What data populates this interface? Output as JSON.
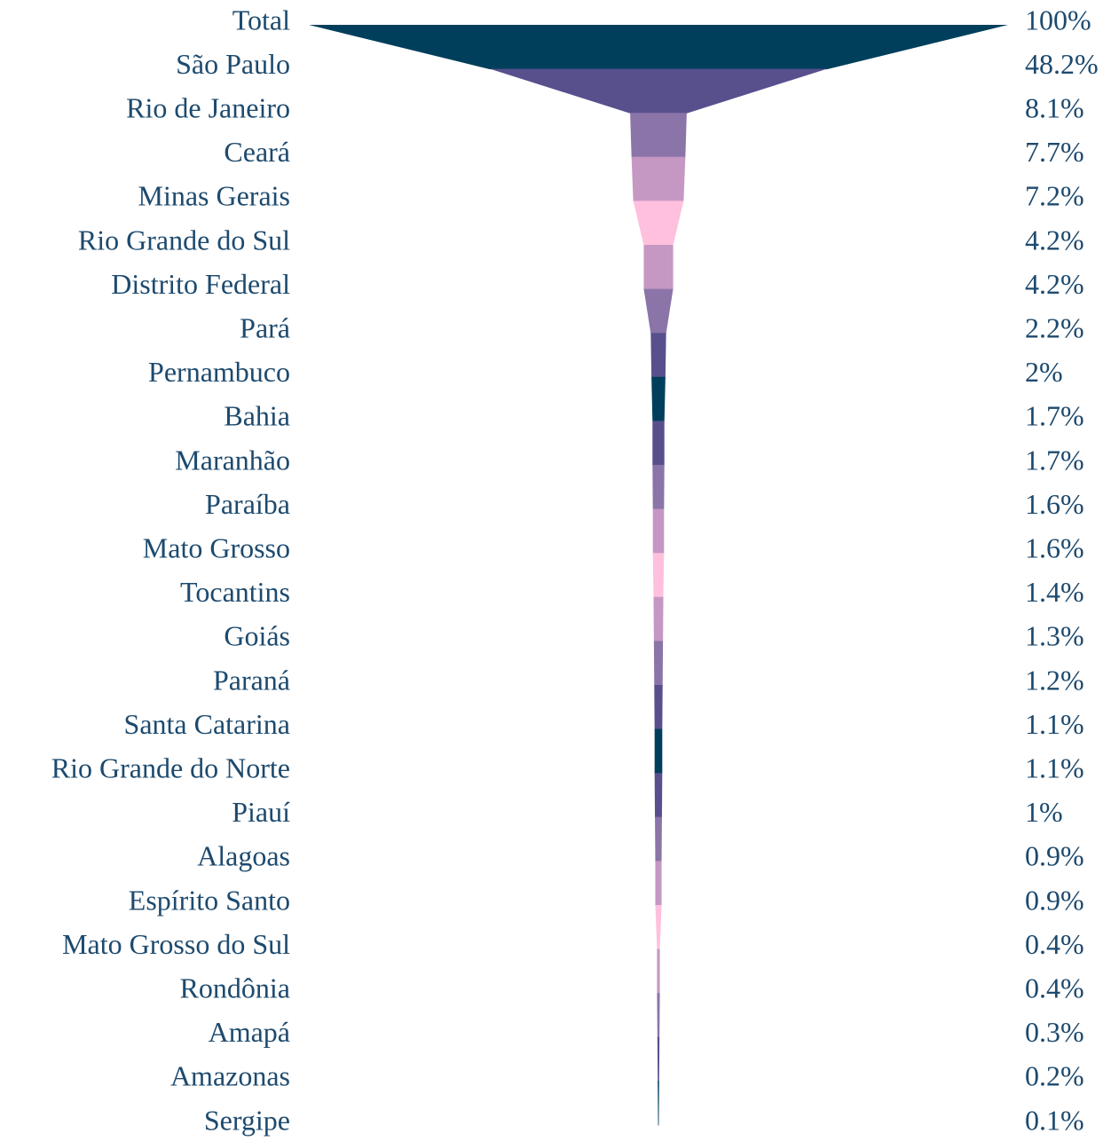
{
  "chart_data": {
    "type": "funnel",
    "categories": [
      "Total",
      "São Paulo",
      "Rio de Janeiro",
      "Ceará",
      "Minas Gerais",
      "Rio Grande do Sul",
      "Distrito Federal",
      "Pará",
      "Pernambuco",
      "Bahia",
      "Maranhão",
      "Paraíba",
      "Mato Grosso",
      "Tocantins",
      "Goiás",
      "Paraná",
      "Santa Catarina",
      "Rio Grande do Norte",
      "Piauí",
      "Alagoas",
      "Espírito Santo",
      "Mato Grosso do Sul",
      "Rondônia",
      "Amapá",
      "Amazonas",
      "Sergipe"
    ],
    "values": [
      100,
      48.2,
      8.1,
      7.7,
      7.2,
      4.2,
      4.2,
      2.2,
      2,
      1.7,
      1.7,
      1.6,
      1.6,
      1.4,
      1.3,
      1.2,
      1.1,
      1.1,
      1,
      0.9,
      0.9,
      0.4,
      0.4,
      0.3,
      0.2,
      0.1
    ],
    "value_labels": [
      "100%",
      "48.2%",
      "8.1%",
      "7.7%",
      "7.2%",
      "4.2%",
      "4.2%",
      "2.2%",
      "2%",
      "1.7%",
      "1.7%",
      "1.6%",
      "1.6%",
      "1.4%",
      "1.3%",
      "1.2%",
      "1.1%",
      "1.1%",
      "1%",
      "0.9%",
      "0.9%",
      "0.4%",
      "0.4%",
      "0.3%",
      "0.2%",
      "0.1%"
    ],
    "colors": [
      "#003f5c",
      "#58508d",
      "#8b74a8",
      "#c597c3",
      "#ffc0de",
      "#c597c3",
      "#8b74a8",
      "#58508d"
    ]
  }
}
